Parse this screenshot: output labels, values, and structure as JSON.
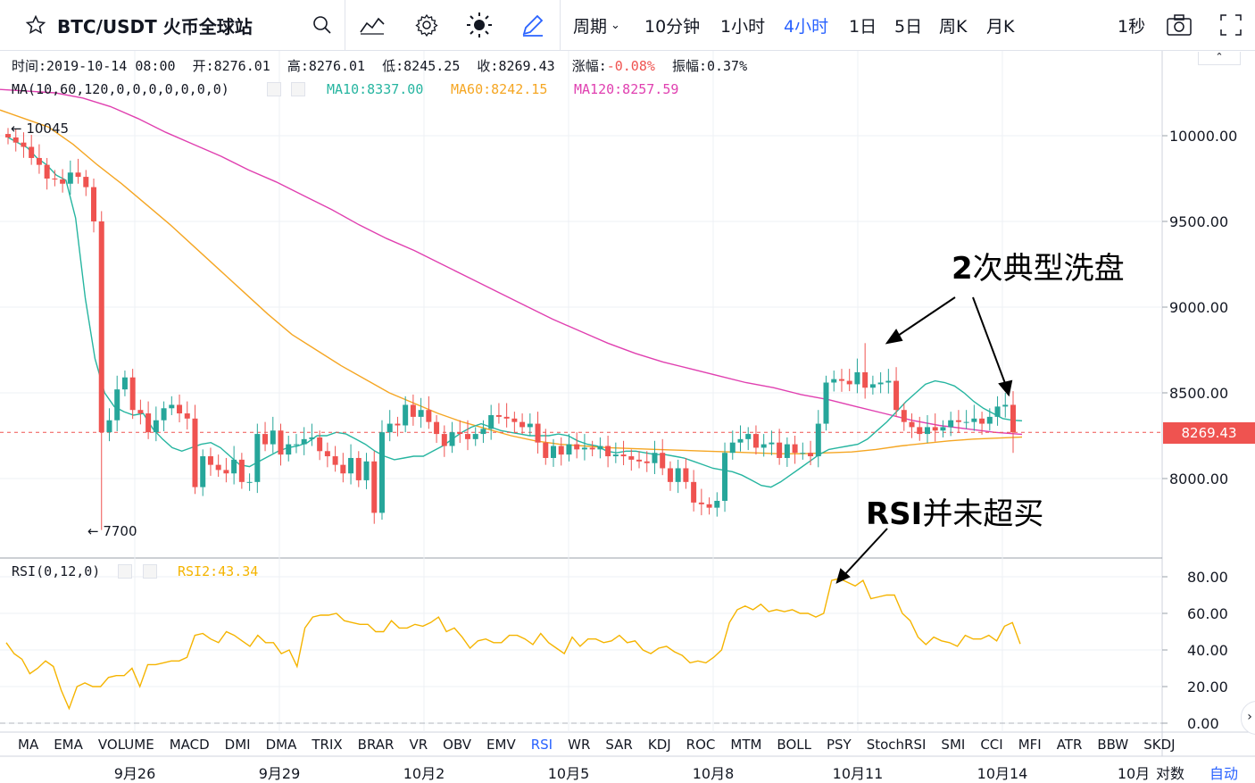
{
  "toolbar": {
    "symbol": "BTC/USDT 火币全球站",
    "period_label": "周期",
    "intervals": [
      "10分钟",
      "1小时",
      "4小时",
      "1日",
      "5日",
      "周K",
      "月K"
    ],
    "active_interval": "4小时",
    "refresh": "1秒",
    "icons": [
      "star-icon",
      "search-icon",
      "indicators-icon",
      "settings-icon",
      "theme-sun-icon",
      "draw-pen-icon",
      "camera-icon",
      "fullscreen-icon"
    ]
  },
  "ohlc_legend": {
    "time_label": "时间:",
    "time": "2019-10-14 08:00",
    "open_label": "开:",
    "open": "8276.01",
    "high_label": "高:",
    "high": "8276.01",
    "low_label": "低:",
    "low": "8245.25",
    "close_label": "收:",
    "close": "8269.43",
    "change_label": "涨幅:",
    "change": "-0.08%",
    "amplitude_label": "振幅:",
    "amplitude": "0.37%"
  },
  "ma_legend": {
    "name": "MA(10,60,120,0,0,0,0,0,0,0)",
    "ma10": "MA10:8337.00",
    "ma60": "MA60:8242.15",
    "ma120": "MA120:8257.59"
  },
  "rsi_legend": {
    "name": "RSI(0,12,0)",
    "value": "RSI2:43.34"
  },
  "annotations": {
    "high_marker": "← 10045",
    "low_marker": "← 7700",
    "washout_num": "2",
    "washout_text": "次典型洗盘",
    "rsi_bold": "RSI",
    "rsi_text": "并未超买"
  },
  "price_tag": "8269.43",
  "indicator_tabs": [
    "MA",
    "EMA",
    "VOLUME",
    "MACD",
    "DMI",
    "DMA",
    "TRIX",
    "BRAR",
    "VR",
    "OBV",
    "EMV",
    "RSI",
    "WR",
    "SAR",
    "KDJ",
    "ROC",
    "MTM",
    "BOLL",
    "PSY",
    "StochRSI",
    "SMI",
    "CCI",
    "MFI",
    "ATR",
    "BBW",
    "SKDJ"
  ],
  "active_tab": "RSI",
  "bottom_bar": {
    "log_label": "对数",
    "auto_label": "自动",
    "end_date": "10月"
  },
  "colors": {
    "up": "#26a69a",
    "down": "#ef5350",
    "ma10": "#26b5a0",
    "ma60": "#f5a623",
    "ma120": "#e040b0",
    "rsi": "#f5b400",
    "accent": "#2962ff",
    "price_line": "#ef5350"
  },
  "chart_data": [
    {
      "type": "candlestick",
      "title": "BTC/USDT 4小时",
      "x_ticks": [
        "9月26",
        "9月29",
        "10月2",
        "10月5",
        "10月8",
        "10月11",
        "10月14"
      ],
      "y_ticks": [
        "10000.00",
        "9500.00",
        "9000.00",
        "8500.00",
        "8000.00"
      ],
      "ylim": [
        7550,
        10300
      ],
      "current_price": 8269.43,
      "closes": [
        9990,
        9960,
        9935,
        9870,
        9830,
        9750,
        9745,
        9720,
        9785,
        9760,
        9700,
        9500,
        8270,
        8340,
        8520,
        8590,
        8400,
        8380,
        8270,
        8340,
        8410,
        8430,
        8380,
        8350,
        7950,
        8130,
        8080,
        8050,
        8030,
        8110,
        7980,
        7980,
        8260,
        8200,
        8280,
        8140,
        8200,
        8200,
        8230,
        8240,
        8160,
        8130,
        8080,
        8030,
        8120,
        7990,
        8100,
        7800,
        8270,
        8320,
        8310,
        8430,
        8360,
        8400,
        8330,
        8260,
        8190,
        8270,
        8260,
        8230,
        8260,
        8290,
        8370,
        8360,
        8350,
        8330,
        8300,
        8320,
        8210,
        8120,
        8190,
        8140,
        8200,
        8170,
        8180,
        8170,
        8190,
        8130,
        8140,
        8130,
        8110,
        8100,
        8090,
        8150,
        8060,
        7980,
        8060,
        7980,
        7860,
        7850,
        7830,
        7870,
        8150,
        8210,
        8230,
        8260,
        8180,
        8200,
        8210,
        8120,
        8200,
        8150,
        8150,
        8130,
        8320,
        8560,
        8580,
        8570,
        8550,
        8620,
        8530,
        8550,
        8560,
        8570,
        8400,
        8330,
        8300,
        8260,
        8300,
        8280,
        8300,
        8340,
        8330,
        8330,
        8350,
        8320,
        8360,
        8420,
        8430,
        8269
      ],
      "ma10": [
        9990,
        9960,
        9930,
        9870,
        9830,
        9770,
        9740,
        9520,
        9050,
        8700,
        8500,
        8420,
        8390,
        8370,
        8380,
        8290,
        8230,
        8180,
        8160,
        8180,
        8200,
        8210,
        8180,
        8130,
        8080,
        8070,
        8100,
        8130,
        8160,
        8180,
        8190,
        8210,
        8250,
        8250,
        8270,
        8260,
        8230,
        8200,
        8160,
        8130,
        8110,
        8120,
        8130,
        8130,
        8160,
        8190,
        8230,
        8270,
        8300,
        8320,
        8300,
        8280,
        8270,
        8260,
        8250,
        8250,
        8250,
        8260,
        8250,
        8220,
        8200,
        8190,
        8160,
        8150,
        8160,
        8160,
        8150,
        8140,
        8140,
        8130,
        8120,
        8100,
        8080,
        8060,
        8050,
        8040,
        8020,
        7990,
        7960,
        7950,
        7980,
        8020,
        8060,
        8100,
        8140,
        8170,
        8180,
        8190,
        8200,
        8230,
        8280,
        8330,
        8390,
        8450,
        8500,
        8550,
        8570,
        8560,
        8540,
        8500,
        8450,
        8410,
        8380,
        8350,
        8340,
        8337
      ],
      "ma60": [
        10150,
        10100,
        10050,
        9950,
        9830,
        9720,
        9600,
        9480,
        9350,
        9220,
        9090,
        8960,
        8840,
        8750,
        8660,
        8580,
        8500,
        8440,
        8380,
        8330,
        8290,
        8250,
        8220,
        8200,
        8190,
        8180,
        8175,
        8170,
        8165,
        8160,
        8155,
        8150,
        8145,
        8145,
        8150,
        8155,
        8170,
        8190,
        8205,
        8220,
        8230,
        8236,
        8242
      ],
      "ma120": [
        10270,
        10260,
        10250,
        10220,
        10170,
        10100,
        10020,
        9950,
        9880,
        9800,
        9730,
        9650,
        9570,
        9480,
        9400,
        9330,
        9250,
        9170,
        9090,
        9010,
        8930,
        8860,
        8790,
        8730,
        8680,
        8640,
        8600,
        8560,
        8530,
        8490,
        8460,
        8420,
        8380,
        8340,
        8310,
        8290,
        8270,
        8257.59
      ]
    },
    {
      "type": "line",
      "title": "RSI(0,12,0)",
      "y_ticks": [
        "80.00",
        "60.00",
        "40.00",
        "20.00",
        "0.00"
      ],
      "ylim": [
        -2,
        88
      ],
      "series": [
        {
          "name": "RSI2",
          "values": [
            44,
            38,
            35,
            27,
            30,
            34,
            31,
            18,
            8,
            20,
            22,
            20,
            20,
            25,
            26,
            26,
            30,
            20,
            32,
            32,
            33,
            34,
            34,
            36,
            48,
            49,
            46,
            44,
            50,
            48,
            45,
            42,
            48,
            44,
            44,
            38,
            40,
            31,
            52,
            58,
            59,
            59,
            60,
            56,
            55,
            54,
            54,
            50,
            50,
            56,
            52,
            52,
            54,
            53,
            55,
            58,
            50,
            52,
            47,
            41,
            45,
            46,
            44,
            44,
            48,
            48,
            46,
            43,
            49,
            44,
            41,
            38,
            47,
            42,
            46,
            46,
            44,
            45,
            48,
            44,
            45,
            40,
            38,
            41,
            42,
            39,
            37,
            33,
            34,
            33,
            36,
            40,
            55,
            62,
            64,
            62,
            65,
            61,
            62,
            61,
            62,
            60,
            60,
            58,
            60,
            78,
            79,
            77,
            75,
            78,
            68,
            69,
            70,
            70,
            60,
            56,
            47,
            43,
            47,
            45,
            44,
            42,
            48,
            46,
            46,
            48,
            45,
            53,
            55,
            43.34
          ]
        }
      ]
    }
  ]
}
